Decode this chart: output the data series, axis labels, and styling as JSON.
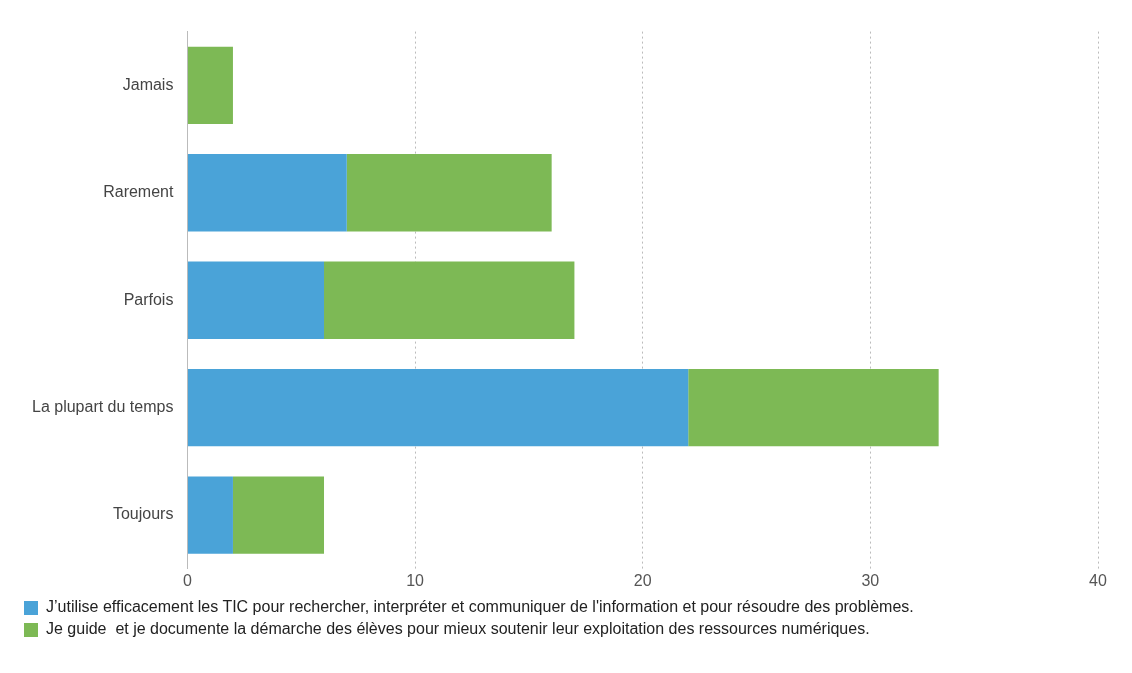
{
  "chart_data": {
    "type": "bar",
    "orientation": "horizontal",
    "stacked": true,
    "categories": [
      "Jamais",
      "Rarement",
      "Parfois",
      "La plupart du temps",
      "Toujours"
    ],
    "series": [
      {
        "name": "J’utilise efficacement les TIC pour rechercher, interpréter et communiquer de l'information et pour résoudre des problèmes.",
        "color": "#4aa3d8",
        "values": [
          0,
          7,
          6,
          22,
          2
        ]
      },
      {
        "name": "Je guide  et je documente la démarche des élèves pour mieux soutenir leur exploitation des ressources numériques.",
        "color": "#7db955",
        "values": [
          2,
          9,
          11,
          11,
          4
        ]
      }
    ],
    "xlim": [
      0,
      40
    ],
    "xticks": [
      0,
      10,
      20,
      30,
      40
    ],
    "grid": "x",
    "legend": "bottom"
  }
}
